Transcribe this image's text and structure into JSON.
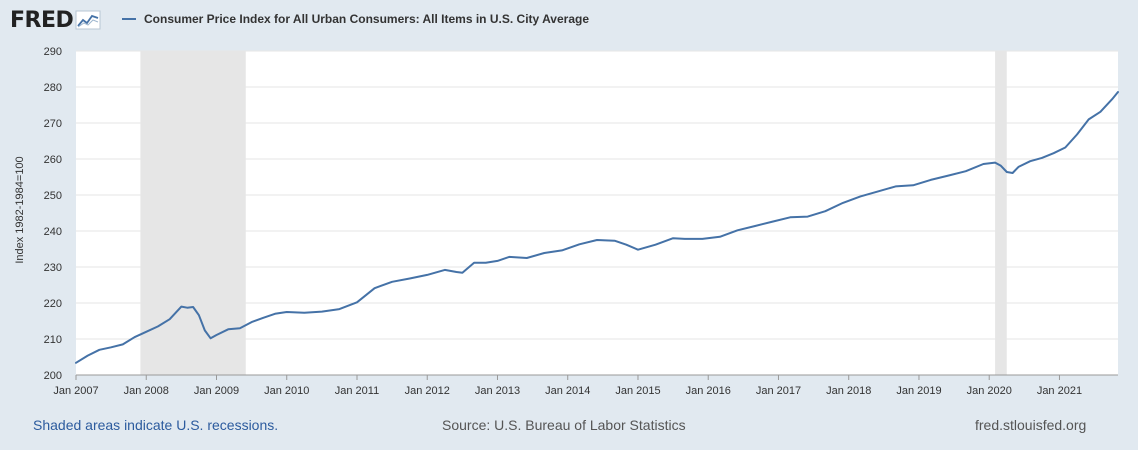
{
  "header": {
    "logo_text": "FRED",
    "logo_icon": "line-graph-icon",
    "series_title": "Consumer Price Index for All Urban Consumers: All Items in U.S. City Average"
  },
  "footer": {
    "recession_note": "Shaded areas indicate U.S. recessions.",
    "source": "Source: U.S. Bureau of Labor Statistics",
    "site": "fred.stlouisfed.org"
  },
  "colors": {
    "line": "#4572a7",
    "recession_shade": "#e6e6e6",
    "background": "#e1e9f0",
    "plot_background": "#ffffff",
    "gridline": "#e6e6e6"
  },
  "chart_data": {
    "type": "line",
    "title": "",
    "xlabel": "",
    "ylabel": "Index 1982-1984=100",
    "ylim": [
      200,
      290
    ],
    "yticks": [
      200,
      210,
      220,
      230,
      240,
      250,
      260,
      270,
      280,
      290
    ],
    "xlim": [
      "2007-01",
      "2021-11"
    ],
    "xticks": [
      "Jan 2007",
      "Jan 2008",
      "Jan 2009",
      "Jan 2010",
      "Jan 2011",
      "Jan 2012",
      "Jan 2013",
      "Jan 2014",
      "Jan 2015",
      "Jan 2016",
      "Jan 2017",
      "Jan 2018",
      "Jan 2019",
      "Jan 2020",
      "Jan 2021"
    ],
    "grid": "horizontal",
    "recessions": [
      [
        "2007-12",
        "2009-06"
      ],
      [
        "2020-02",
        "2020-04"
      ]
    ],
    "series": [
      {
        "points": [
          [
            "2007-01",
            203.4
          ],
          [
            "2007-03",
            205.4
          ],
          [
            "2007-05",
            207.0
          ],
          [
            "2007-07",
            207.7
          ],
          [
            "2007-09",
            208.5
          ],
          [
            "2007-11",
            210.5
          ],
          [
            "2008-01",
            212.0
          ],
          [
            "2008-03",
            213.5
          ],
          [
            "2008-05",
            215.5
          ],
          [
            "2008-07",
            219.0
          ],
          [
            "2008-08",
            218.7
          ],
          [
            "2008-09",
            218.9
          ],
          [
            "2008-10",
            216.6
          ],
          [
            "2008-11",
            212.4
          ],
          [
            "2008-12",
            210.2
          ],
          [
            "2009-01",
            211.1
          ],
          [
            "2009-03",
            212.7
          ],
          [
            "2009-05",
            213.0
          ],
          [
            "2009-07",
            214.7
          ],
          [
            "2009-09",
            215.9
          ],
          [
            "2009-11",
            217.0
          ],
          [
            "2010-01",
            217.5
          ],
          [
            "2010-04",
            217.3
          ],
          [
            "2010-07",
            217.6
          ],
          [
            "2010-10",
            218.3
          ],
          [
            "2011-01",
            220.2
          ],
          [
            "2011-04",
            224.1
          ],
          [
            "2011-07",
            225.9
          ],
          [
            "2011-10",
            226.8
          ],
          [
            "2012-01",
            227.8
          ],
          [
            "2012-04",
            229.2
          ],
          [
            "2012-06",
            228.6
          ],
          [
            "2012-07",
            228.4
          ],
          [
            "2012-09",
            231.2
          ],
          [
            "2012-11",
            231.2
          ],
          [
            "2013-01",
            231.7
          ],
          [
            "2013-03",
            232.8
          ],
          [
            "2013-06",
            232.5
          ],
          [
            "2013-09",
            233.9
          ],
          [
            "2013-12",
            234.6
          ],
          [
            "2014-03",
            236.3
          ],
          [
            "2014-06",
            237.5
          ],
          [
            "2014-09",
            237.3
          ],
          [
            "2014-11",
            236.2
          ],
          [
            "2015-01",
            234.8
          ],
          [
            "2015-04",
            236.2
          ],
          [
            "2015-07",
            238.0
          ],
          [
            "2015-09",
            237.8
          ],
          [
            "2015-12",
            237.8
          ],
          [
            "2016-03",
            238.4
          ],
          [
            "2016-06",
            240.2
          ],
          [
            "2016-09",
            241.4
          ],
          [
            "2016-12",
            242.6
          ],
          [
            "2017-03",
            243.8
          ],
          [
            "2017-06",
            244.0
          ],
          [
            "2017-09",
            245.5
          ],
          [
            "2017-12",
            247.8
          ],
          [
            "2018-03",
            249.6
          ],
          [
            "2018-06",
            251.0
          ],
          [
            "2018-09",
            252.4
          ],
          [
            "2018-12",
            252.7
          ],
          [
            "2019-03",
            254.2
          ],
          [
            "2019-06",
            255.4
          ],
          [
            "2019-09",
            256.6
          ],
          [
            "2019-12",
            258.6
          ],
          [
            "2020-02",
            259.0
          ],
          [
            "2020-03",
            258.1
          ],
          [
            "2020-04",
            256.4
          ],
          [
            "2020-05",
            256.1
          ],
          [
            "2020-06",
            257.8
          ],
          [
            "2020-08",
            259.4
          ],
          [
            "2020-10",
            260.3
          ],
          [
            "2020-12",
            261.6
          ],
          [
            "2021-02",
            263.2
          ],
          [
            "2021-04",
            266.8
          ],
          [
            "2021-06",
            271.0
          ],
          [
            "2021-08",
            273.1
          ],
          [
            "2021-10",
            276.6
          ],
          [
            "2021-11",
            278.6
          ]
        ]
      }
    ]
  }
}
